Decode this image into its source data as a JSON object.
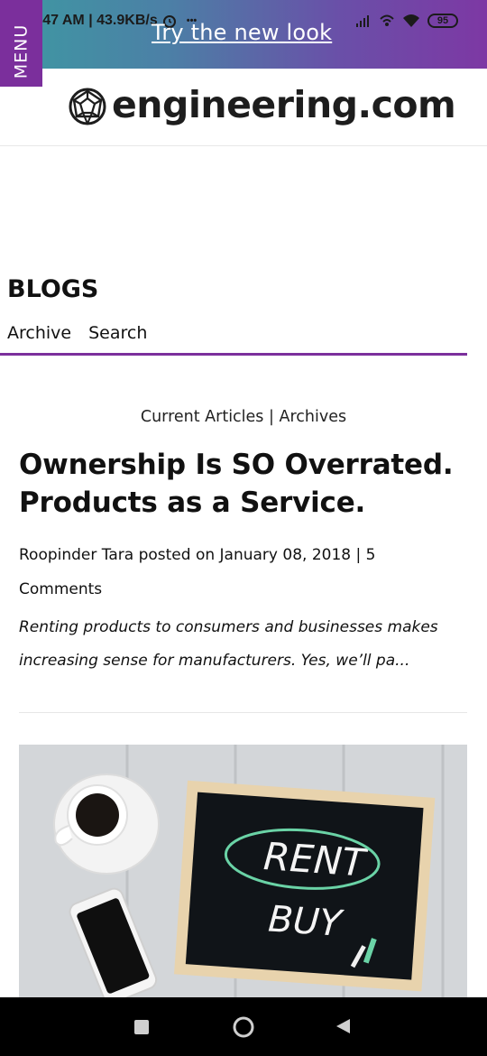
{
  "status_bar": {
    "time_info": "2:47 AM | 43.9KB/s",
    "extra_dots": "•••",
    "battery_level": "95"
  },
  "banner": {
    "try_new_look": "Try the new look",
    "menu_label": "MENU",
    "colors": {
      "gradient_start": "#3d9aa2",
      "gradient_end": "#7d38a4",
      "menu_bg": "#7b2f9c"
    }
  },
  "header": {
    "logo_text": "engineering.com",
    "logo_icon": "geodesic-sphere-icon"
  },
  "blogs": {
    "title": "BLOGS",
    "nav": [
      {
        "label": "Archive"
      },
      {
        "label": "Search"
      }
    ],
    "accent_color": "#7b2f9c"
  },
  "article_links": {
    "current": "Current Articles",
    "separator": "|",
    "archives": "Archives"
  },
  "article": {
    "title": "Ownership Is SO Overrated. Products as a Service.",
    "byline": "Roopinder Tara posted on January 08, 2018 | 5 Comments",
    "excerpt": "Renting products to consumers and businesses makes increasing sense for manufacturers. Yes, we’ll pa...",
    "image": {
      "chalk_text_1": "RENT",
      "chalk_text_2": "BUY"
    }
  },
  "android_nav": {
    "icons": [
      "recents-square-icon",
      "home-circle-icon",
      "back-triangle-icon"
    ]
  }
}
